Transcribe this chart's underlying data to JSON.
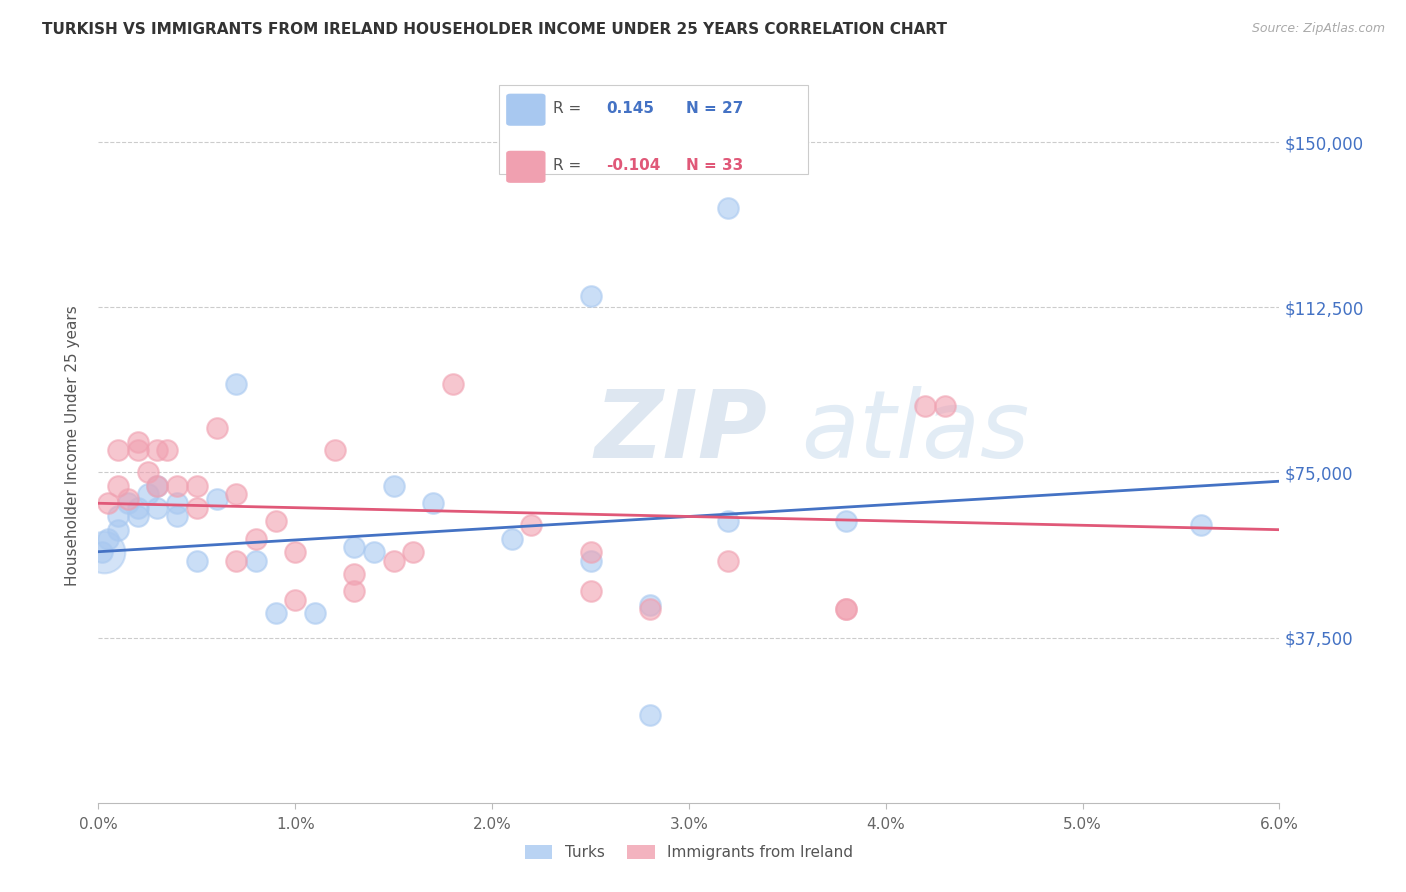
{
  "title": "TURKISH VS IMMIGRANTS FROM IRELAND HOUSEHOLDER INCOME UNDER 25 YEARS CORRELATION CHART",
  "source": "Source: ZipAtlas.com",
  "ylabel": "Householder Income Under 25 years",
  "legend_turks_label": "Turks",
  "legend_ireland_label": "Immigrants from Ireland",
  "legend_r_turks_val": "0.145",
  "legend_n_turks": "N = 27",
  "legend_r_ireland_val": "-0.104",
  "legend_n_ireland": "N = 33",
  "watermark_zip": "ZIP",
  "watermark_atlas": "atlas",
  "y_ticks": [
    37500,
    75000,
    112500,
    150000
  ],
  "y_tick_labels": [
    "$37,500",
    "$75,000",
    "$112,500",
    "$150,000"
  ],
  "x_min": 0.0,
  "x_max": 0.06,
  "y_min": 0,
  "y_max": 162000,
  "color_turks": "#A8C8F0",
  "color_ireland": "#F0A0B0",
  "color_trendline_turks": "#4472C4",
  "color_trendline_ireland": "#E05878",
  "color_yticks": "#4472C4",
  "background_color": "#FFFFFF",
  "turks_x": [
    0.0002,
    0.0005,
    0.001,
    0.001,
    0.0015,
    0.002,
    0.002,
    0.0025,
    0.003,
    0.003,
    0.004,
    0.004,
    0.005,
    0.006,
    0.007,
    0.008,
    0.009,
    0.011,
    0.013,
    0.014,
    0.015,
    0.017,
    0.021,
    0.025,
    0.028,
    0.032,
    0.038
  ],
  "turks_y": [
    57000,
    60000,
    62000,
    65000,
    68000,
    65000,
    67000,
    70000,
    67000,
    72000,
    65000,
    68000,
    55000,
    69000,
    95000,
    55000,
    43000,
    43000,
    58000,
    57000,
    72000,
    68000,
    60000,
    55000,
    45000,
    64000,
    64000
  ],
  "ireland_x": [
    0.0005,
    0.001,
    0.001,
    0.0015,
    0.002,
    0.002,
    0.0025,
    0.003,
    0.003,
    0.0035,
    0.004,
    0.005,
    0.005,
    0.006,
    0.007,
    0.007,
    0.008,
    0.009,
    0.01,
    0.01,
    0.012,
    0.013,
    0.013,
    0.015,
    0.016,
    0.018,
    0.022,
    0.025,
    0.025,
    0.028,
    0.032,
    0.038,
    0.043
  ],
  "ireland_y": [
    68000,
    72000,
    80000,
    69000,
    80000,
    82000,
    75000,
    80000,
    72000,
    80000,
    72000,
    67000,
    72000,
    85000,
    70000,
    55000,
    60000,
    64000,
    46000,
    57000,
    80000,
    52000,
    48000,
    55000,
    57000,
    95000,
    63000,
    57000,
    48000,
    44000,
    55000,
    44000,
    90000
  ],
  "turks_large_x": [
    0.0
  ],
  "turks_large_y": [
    57000
  ]
}
